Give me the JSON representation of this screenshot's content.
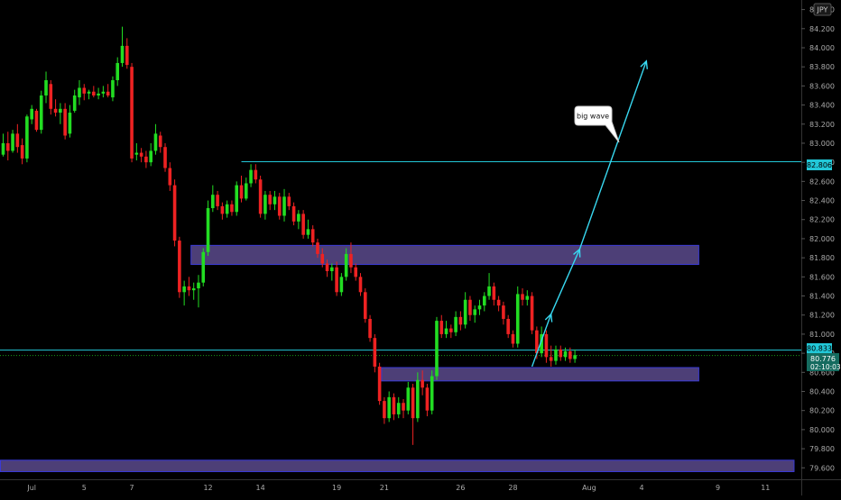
{
  "symbol_currency": "JPY",
  "annotation_text": "big wave",
  "price_tags": {
    "resistance": "82.806",
    "upper_line": "80.833",
    "current_price": "80.776",
    "countdown": "02:10:03"
  },
  "colors": {
    "background": "#000000",
    "up": "#22dd22",
    "down": "#ee2222",
    "zone_fill": "#5b4a8c",
    "zone_border": "#3a3ad6",
    "cyan": "#22c8d8",
    "arrow": "#38d8f0",
    "current_tag": "#156b5f"
  },
  "chart_data": {
    "type": "candlestick",
    "x_ticks": [
      "Jul",
      "5",
      "7",
      "12",
      "14",
      "19",
      "21",
      "26",
      "28",
      "Aug",
      "4",
      "9",
      "11"
    ],
    "y_ticks": [
      "84.400",
      "84.200",
      "84.000",
      "83.800",
      "83.600",
      "83.400",
      "83.200",
      "83.000",
      "82.800",
      "82.600",
      "82.400",
      "82.200",
      "82.000",
      "81.800",
      "81.600",
      "81.400",
      "81.200",
      "81.000",
      "80.800",
      "80.600",
      "80.400",
      "80.200",
      "80.000",
      "79.800",
      "79.600"
    ],
    "ylim": [
      79.48,
      84.5
    ],
    "horizontal_lines": [
      82.806,
      80.833
    ],
    "current_price": 80.776,
    "zones": [
      {
        "low": 81.73,
        "high": 81.93,
        "start_bar": 40,
        "end_bar": 146
      },
      {
        "low": 80.51,
        "high": 80.65,
        "start_bar": 80,
        "end_bar": 146
      },
      {
        "low": 79.56,
        "high": 79.68,
        "start_bar": 0,
        "end_bar": 166
      }
    ],
    "arrow_points": [
      [
        80.66,
        111
      ],
      [
        81.21,
        115
      ],
      [
        81.89,
        121
      ],
      [
        83.86,
        135
      ]
    ],
    "candles": [
      {
        "o": 82.88,
        "h": 83.1,
        "l": 82.86,
        "c": 83.0
      },
      {
        "o": 83.0,
        "h": 83.12,
        "l": 82.82,
        "c": 82.92
      },
      {
        "o": 82.92,
        "h": 83.14,
        "l": 82.9,
        "c": 83.1
      },
      {
        "o": 83.1,
        "h": 83.2,
        "l": 82.9,
        "c": 82.96
      },
      {
        "o": 82.98,
        "h": 83.05,
        "l": 82.78,
        "c": 82.84
      },
      {
        "o": 82.84,
        "h": 83.3,
        "l": 82.8,
        "c": 83.28
      },
      {
        "o": 83.25,
        "h": 83.4,
        "l": 83.2,
        "c": 83.36
      },
      {
        "o": 83.34,
        "h": 83.36,
        "l": 83.12,
        "c": 83.14
      },
      {
        "o": 83.14,
        "h": 83.55,
        "l": 83.1,
        "c": 83.5
      },
      {
        "o": 83.5,
        "h": 83.75,
        "l": 83.42,
        "c": 83.66
      },
      {
        "o": 83.62,
        "h": 83.66,
        "l": 83.3,
        "c": 83.36
      },
      {
        "o": 83.36,
        "h": 83.46,
        "l": 83.28,
        "c": 83.32
      },
      {
        "o": 83.32,
        "h": 83.42,
        "l": 83.2,
        "c": 83.36
      },
      {
        "o": 83.36,
        "h": 83.42,
        "l": 83.04,
        "c": 83.08
      },
      {
        "o": 83.1,
        "h": 83.4,
        "l": 83.06,
        "c": 83.32
      },
      {
        "o": 83.34,
        "h": 83.56,
        "l": 83.32,
        "c": 83.5
      },
      {
        "o": 83.48,
        "h": 83.66,
        "l": 83.4,
        "c": 83.58
      },
      {
        "o": 83.58,
        "h": 83.62,
        "l": 83.45,
        "c": 83.52
      },
      {
        "o": 83.52,
        "h": 83.56,
        "l": 83.46,
        "c": 83.54
      },
      {
        "o": 83.54,
        "h": 83.6,
        "l": 83.48,
        "c": 83.5
      },
      {
        "o": 83.5,
        "h": 83.58,
        "l": 83.46,
        "c": 83.52
      },
      {
        "o": 83.52,
        "h": 83.6,
        "l": 83.48,
        "c": 83.54
      },
      {
        "o": 83.54,
        "h": 83.62,
        "l": 83.48,
        "c": 83.5
      },
      {
        "o": 83.48,
        "h": 83.7,
        "l": 83.44,
        "c": 83.66
      },
      {
        "o": 83.66,
        "h": 83.9,
        "l": 83.6,
        "c": 83.84
      },
      {
        "o": 83.84,
        "h": 84.22,
        "l": 83.8,
        "c": 84.02
      },
      {
        "o": 84.02,
        "h": 84.1,
        "l": 83.78,
        "c": 83.82
      },
      {
        "o": 83.8,
        "h": 83.84,
        "l": 82.8,
        "c": 82.84
      },
      {
        "o": 82.88,
        "h": 83.0,
        "l": 82.82,
        "c": 82.9
      },
      {
        "o": 82.9,
        "h": 82.95,
        "l": 82.8,
        "c": 82.86
      },
      {
        "o": 82.86,
        "h": 82.92,
        "l": 82.74,
        "c": 82.8
      },
      {
        "o": 82.8,
        "h": 83.0,
        "l": 82.76,
        "c": 82.92
      },
      {
        "o": 82.92,
        "h": 83.2,
        "l": 82.88,
        "c": 83.1
      },
      {
        "o": 83.08,
        "h": 83.12,
        "l": 82.9,
        "c": 82.96
      },
      {
        "o": 82.96,
        "h": 83.0,
        "l": 82.7,
        "c": 82.74
      },
      {
        "o": 82.74,
        "h": 82.8,
        "l": 82.5,
        "c": 82.56
      },
      {
        "o": 82.56,
        "h": 82.62,
        "l": 81.92,
        "c": 81.98
      },
      {
        "o": 81.98,
        "h": 82.02,
        "l": 81.38,
        "c": 81.44
      },
      {
        "o": 81.44,
        "h": 81.56,
        "l": 81.3,
        "c": 81.5
      },
      {
        "o": 81.5,
        "h": 81.6,
        "l": 81.4,
        "c": 81.46
      },
      {
        "o": 81.46,
        "h": 81.54,
        "l": 81.36,
        "c": 81.48
      },
      {
        "o": 81.48,
        "h": 81.62,
        "l": 81.28,
        "c": 81.54
      },
      {
        "o": 81.54,
        "h": 81.9,
        "l": 81.5,
        "c": 81.86
      },
      {
        "o": 81.86,
        "h": 82.4,
        "l": 81.82,
        "c": 82.32
      },
      {
        "o": 82.32,
        "h": 82.56,
        "l": 82.28,
        "c": 82.46
      },
      {
        "o": 82.46,
        "h": 82.5,
        "l": 82.3,
        "c": 82.34
      },
      {
        "o": 82.34,
        "h": 82.38,
        "l": 82.2,
        "c": 82.26
      },
      {
        "o": 82.26,
        "h": 82.4,
        "l": 82.22,
        "c": 82.36
      },
      {
        "o": 82.36,
        "h": 82.4,
        "l": 82.24,
        "c": 82.28
      },
      {
        "o": 82.28,
        "h": 82.6,
        "l": 82.24,
        "c": 82.56
      },
      {
        "o": 82.56,
        "h": 82.66,
        "l": 82.38,
        "c": 82.42
      },
      {
        "o": 82.42,
        "h": 82.64,
        "l": 82.4,
        "c": 82.58
      },
      {
        "o": 82.58,
        "h": 82.78,
        "l": 82.54,
        "c": 82.72
      },
      {
        "o": 82.72,
        "h": 82.78,
        "l": 82.58,
        "c": 82.62
      },
      {
        "o": 82.62,
        "h": 82.66,
        "l": 82.22,
        "c": 82.26
      },
      {
        "o": 82.26,
        "h": 82.5,
        "l": 82.2,
        "c": 82.46
      },
      {
        "o": 82.46,
        "h": 82.5,
        "l": 82.3,
        "c": 82.36
      },
      {
        "o": 82.36,
        "h": 82.5,
        "l": 82.3,
        "c": 82.44
      },
      {
        "o": 82.44,
        "h": 82.48,
        "l": 82.2,
        "c": 82.24
      },
      {
        "o": 82.24,
        "h": 82.52,
        "l": 82.18,
        "c": 82.44
      },
      {
        "o": 82.44,
        "h": 82.48,
        "l": 82.3,
        "c": 82.34
      },
      {
        "o": 82.34,
        "h": 82.38,
        "l": 82.14,
        "c": 82.18
      },
      {
        "o": 82.18,
        "h": 82.3,
        "l": 82.1,
        "c": 82.26
      },
      {
        "o": 82.26,
        "h": 82.3,
        "l": 82.0,
        "c": 82.04
      },
      {
        "o": 82.04,
        "h": 82.2,
        "l": 82.0,
        "c": 82.1
      },
      {
        "o": 82.1,
        "h": 82.14,
        "l": 81.92,
        "c": 81.96
      },
      {
        "o": 81.96,
        "h": 82.0,
        "l": 81.8,
        "c": 81.84
      },
      {
        "o": 81.84,
        "h": 81.9,
        "l": 81.7,
        "c": 81.74
      },
      {
        "o": 81.74,
        "h": 81.78,
        "l": 81.6,
        "c": 81.66
      },
      {
        "o": 81.66,
        "h": 81.74,
        "l": 81.56,
        "c": 81.7
      },
      {
        "o": 81.7,
        "h": 81.76,
        "l": 81.4,
        "c": 81.44
      },
      {
        "o": 81.44,
        "h": 81.64,
        "l": 81.4,
        "c": 81.6
      },
      {
        "o": 81.6,
        "h": 81.9,
        "l": 81.56,
        "c": 81.84
      },
      {
        "o": 81.84,
        "h": 81.96,
        "l": 81.64,
        "c": 81.7
      },
      {
        "o": 81.7,
        "h": 81.74,
        "l": 81.56,
        "c": 81.6
      },
      {
        "o": 81.6,
        "h": 81.64,
        "l": 81.4,
        "c": 81.44
      },
      {
        "o": 81.44,
        "h": 81.48,
        "l": 81.12,
        "c": 81.16
      },
      {
        "o": 81.16,
        "h": 81.2,
        "l": 80.92,
        "c": 80.96
      },
      {
        "o": 80.96,
        "h": 81.0,
        "l": 80.6,
        "c": 80.66
      },
      {
        "o": 80.66,
        "h": 80.7,
        "l": 80.26,
        "c": 80.3
      },
      {
        "o": 80.3,
        "h": 80.34,
        "l": 80.06,
        "c": 80.12
      },
      {
        "o": 80.12,
        "h": 80.4,
        "l": 80.08,
        "c": 80.34
      },
      {
        "o": 80.34,
        "h": 80.38,
        "l": 80.1,
        "c": 80.16
      },
      {
        "o": 80.16,
        "h": 80.34,
        "l": 80.12,
        "c": 80.28
      },
      {
        "o": 80.28,
        "h": 80.32,
        "l": 80.12,
        "c": 80.2
      },
      {
        "o": 80.2,
        "h": 80.5,
        "l": 80.16,
        "c": 80.44
      },
      {
        "o": 80.44,
        "h": 80.48,
        "l": 79.84,
        "c": 80.12
      },
      {
        "o": 80.12,
        "h": 80.6,
        "l": 80.08,
        "c": 80.52
      },
      {
        "o": 80.52,
        "h": 80.62,
        "l": 80.36,
        "c": 80.44
      },
      {
        "o": 80.44,
        "h": 80.48,
        "l": 80.14,
        "c": 80.2
      },
      {
        "o": 80.2,
        "h": 80.62,
        "l": 80.16,
        "c": 80.56
      },
      {
        "o": 80.56,
        "h": 81.18,
        "l": 80.52,
        "c": 81.14
      },
      {
        "o": 81.14,
        "h": 81.2,
        "l": 80.96,
        "c": 81.0
      },
      {
        "o": 81.0,
        "h": 81.14,
        "l": 80.96,
        "c": 81.06
      },
      {
        "o": 81.06,
        "h": 81.1,
        "l": 80.96,
        "c": 81.02
      },
      {
        "o": 81.02,
        "h": 81.24,
        "l": 80.98,
        "c": 81.18
      },
      {
        "o": 81.18,
        "h": 81.24,
        "l": 81.04,
        "c": 81.1
      },
      {
        "o": 81.1,
        "h": 81.44,
        "l": 81.06,
        "c": 81.36
      },
      {
        "o": 81.36,
        "h": 81.4,
        "l": 81.14,
        "c": 81.2
      },
      {
        "o": 81.2,
        "h": 81.3,
        "l": 81.12,
        "c": 81.26
      },
      {
        "o": 81.26,
        "h": 81.36,
        "l": 81.2,
        "c": 81.3
      },
      {
        "o": 81.3,
        "h": 81.44,
        "l": 81.24,
        "c": 81.4
      },
      {
        "o": 81.4,
        "h": 81.64,
        "l": 81.36,
        "c": 81.5
      },
      {
        "o": 81.5,
        "h": 81.54,
        "l": 81.3,
        "c": 81.36
      },
      {
        "o": 81.36,
        "h": 81.4,
        "l": 81.24,
        "c": 81.3
      },
      {
        "o": 81.3,
        "h": 81.34,
        "l": 81.1,
        "c": 81.16
      },
      {
        "o": 81.16,
        "h": 81.2,
        "l": 80.96,
        "c": 81.0
      },
      {
        "o": 81.0,
        "h": 81.04,
        "l": 80.86,
        "c": 80.9
      },
      {
        "o": 80.9,
        "h": 81.5,
        "l": 80.86,
        "c": 81.42
      },
      {
        "o": 81.42,
        "h": 81.48,
        "l": 81.3,
        "c": 81.36
      },
      {
        "o": 81.36,
        "h": 81.46,
        "l": 81.3,
        "c": 81.4
      },
      {
        "o": 81.4,
        "h": 81.44,
        "l": 81.0,
        "c": 81.04
      },
      {
        "o": 81.04,
        "h": 81.08,
        "l": 80.74,
        "c": 80.8
      },
      {
        "o": 80.8,
        "h": 81.08,
        "l": 80.76,
        "c": 81.0
      },
      {
        "o": 81.0,
        "h": 81.04,
        "l": 80.7,
        "c": 80.76
      },
      {
        "o": 80.76,
        "h": 80.88,
        "l": 80.66,
        "c": 80.72
      },
      {
        "o": 80.72,
        "h": 80.88,
        "l": 80.68,
        "c": 80.84
      },
      {
        "o": 80.84,
        "h": 80.88,
        "l": 80.72,
        "c": 80.76
      },
      {
        "o": 80.76,
        "h": 80.86,
        "l": 80.72,
        "c": 80.82
      },
      {
        "o": 80.82,
        "h": 80.86,
        "l": 80.7,
        "c": 80.74
      },
      {
        "o": 80.74,
        "h": 80.84,
        "l": 80.7,
        "c": 80.78
      }
    ]
  }
}
